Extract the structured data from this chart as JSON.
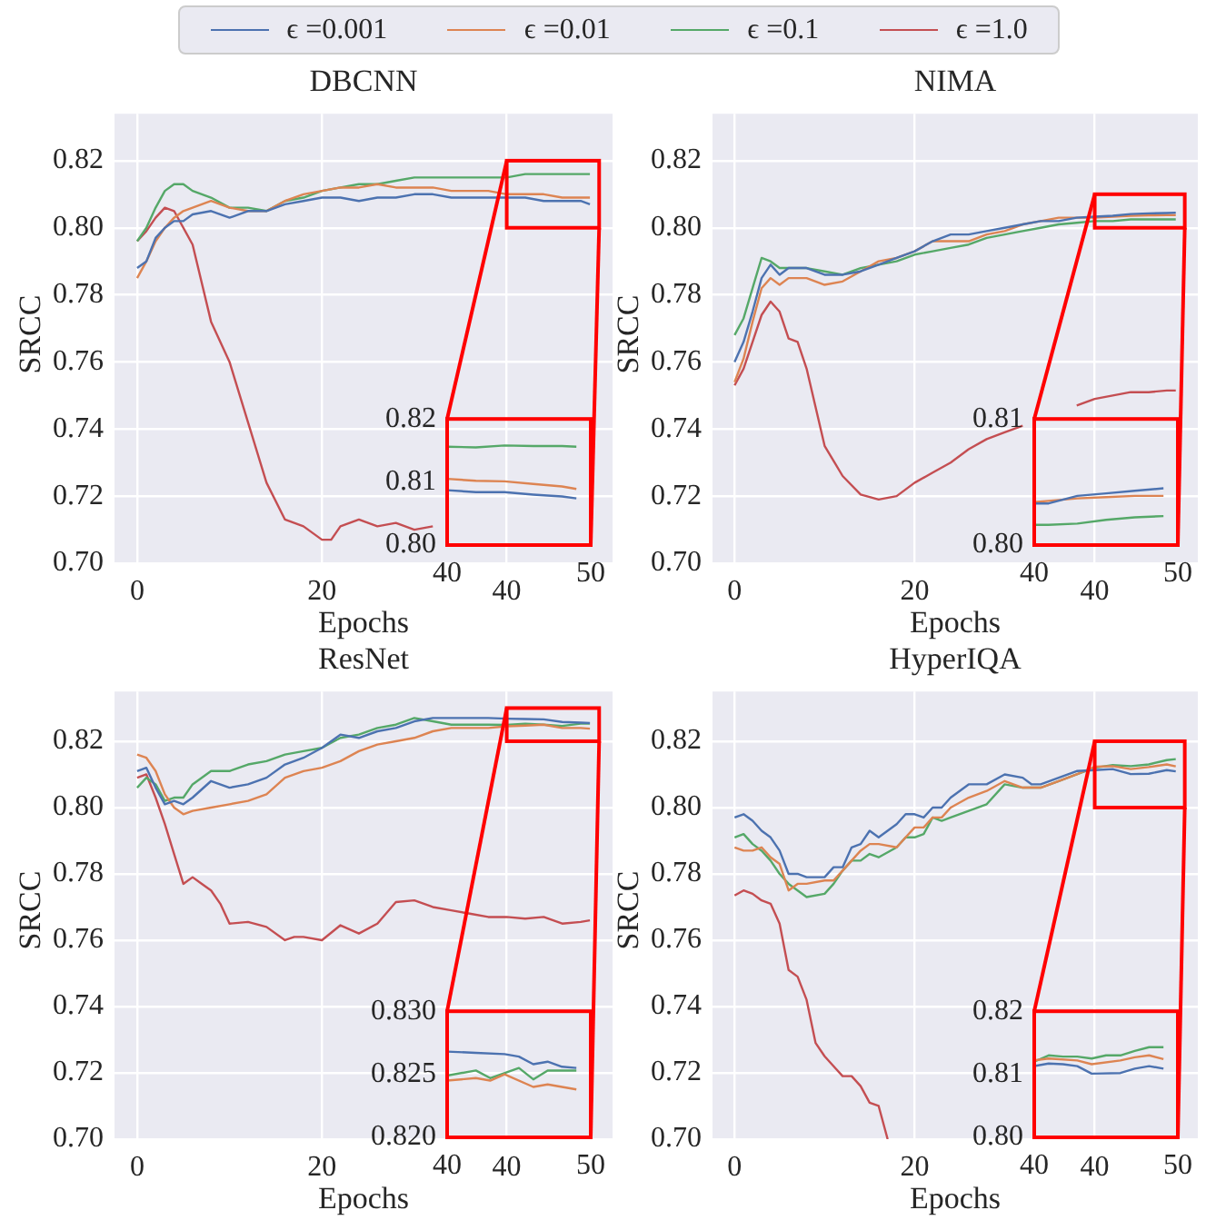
{
  "chart_data": [
    {
      "type": "line",
      "title": "DBCNN",
      "xlabel": "Epochs",
      "ylabel": "SRCC",
      "xlim": [
        -2.45,
        51.45
      ],
      "xticks": [
        0,
        20,
        40
      ],
      "ylim": [
        0.7,
        0.834
      ],
      "yticks": [
        {
          "value": 0.7,
          "label": "0.70"
        },
        {
          "value": 0.72,
          "label": "0.72"
        },
        {
          "value": 0.74,
          "label": "0.74"
        },
        {
          "value": 0.76,
          "label": "0.76"
        },
        {
          "value": 0.78,
          "label": "0.78"
        },
        {
          "value": 0.8,
          "label": "0.80"
        },
        {
          "value": 0.82,
          "label": "0.82"
        }
      ],
      "grid": true,
      "legend": "top",
      "marker": "none",
      "series": [
        {
          "name": "ϵ =0.001",
          "color": "#4c72b0",
          "x": [
            0,
            1,
            2,
            3,
            4,
            5,
            6,
            8,
            10,
            12,
            14,
            16,
            18,
            20,
            22,
            24,
            26,
            28,
            30,
            32,
            34,
            36,
            38,
            40,
            42,
            44,
            46,
            48,
            49
          ],
          "values": [
            0.788,
            0.79,
            0.797,
            0.8,
            0.802,
            0.802,
            0.804,
            0.805,
            0.803,
            0.805,
            0.805,
            0.807,
            0.808,
            0.809,
            0.809,
            0.808,
            0.809,
            0.809,
            0.81,
            0.81,
            0.809,
            0.809,
            0.809,
            0.809,
            0.809,
            0.808,
            0.808,
            0.808,
            0.807
          ]
        },
        {
          "name": "ϵ =0.01",
          "color": "#dd8452",
          "x": [
            0,
            1,
            2,
            3,
            4,
            5,
            6,
            8,
            10,
            12,
            14,
            16,
            18,
            20,
            22,
            24,
            26,
            28,
            30,
            32,
            34,
            36,
            38,
            40,
            42,
            44,
            46,
            48,
            49
          ],
          "values": [
            0.785,
            0.79,
            0.796,
            0.8,
            0.803,
            0.805,
            0.806,
            0.808,
            0.806,
            0.805,
            0.805,
            0.808,
            0.81,
            0.811,
            0.812,
            0.812,
            0.813,
            0.812,
            0.812,
            0.812,
            0.811,
            0.811,
            0.811,
            0.81,
            0.81,
            0.81,
            0.809,
            0.809,
            0.809
          ]
        },
        {
          "name": "ϵ =0.1",
          "color": "#55a868",
          "x": [
            0,
            1,
            2,
            3,
            4,
            5,
            6,
            8,
            10,
            12,
            14,
            16,
            18,
            20,
            22,
            24,
            26,
            28,
            30,
            32,
            34,
            36,
            38,
            40,
            42,
            44,
            46,
            48,
            49
          ],
          "values": [
            0.796,
            0.8,
            0.806,
            0.811,
            0.813,
            0.813,
            0.811,
            0.809,
            0.806,
            0.806,
            0.805,
            0.808,
            0.809,
            0.811,
            0.812,
            0.813,
            0.813,
            0.814,
            0.815,
            0.815,
            0.815,
            0.815,
            0.815,
            0.815,
            0.816,
            0.816,
            0.816,
            0.816,
            0.816
          ]
        },
        {
          "name": "ϵ =1.0",
          "color": "#c44e52",
          "x": [
            0,
            1,
            2,
            3,
            4,
            5,
            6,
            8,
            10,
            12,
            14,
            16,
            18,
            20,
            21,
            22,
            24,
            26,
            28,
            30,
            32
          ],
          "values": [
            0.796,
            0.799,
            0.803,
            0.806,
            0.805,
            0.8,
            0.795,
            0.772,
            0.76,
            0.742,
            0.724,
            0.713,
            0.711,
            0.707,
            0.707,
            0.711,
            0.713,
            0.711,
            0.712,
            0.71,
            0.711
          ]
        }
      ]
    },
    {
      "type": "line",
      "xlim": [
        40,
        50
      ],
      "xticks": [
        40,
        50
      ],
      "ylim": [
        0.8,
        0.82
      ],
      "yticks": [
        {
          "value": 0.8,
          "label": "0.80"
        },
        {
          "value": 0.81,
          "label": "0.81"
        },
        {
          "value": 0.82,
          "label": "0.82"
        }
      ],
      "marker": "none",
      "series": [
        {
          "color": "#4c72b0",
          "x": [
            40,
            42,
            44,
            46,
            48,
            49
          ],
          "values": [
            0.8087,
            0.8084,
            0.8084,
            0.808,
            0.8077,
            0.8074
          ]
        },
        {
          "color": "#dd8452",
          "x": [
            40,
            42,
            44,
            46,
            48,
            49
          ],
          "values": [
            0.8105,
            0.8102,
            0.8101,
            0.8097,
            0.8093,
            0.8089
          ]
        },
        {
          "color": "#55a868",
          "x": [
            40,
            42,
            44,
            46,
            48,
            49
          ],
          "values": [
            0.8156,
            0.8155,
            0.8158,
            0.8157,
            0.8157,
            0.8156
          ]
        }
      ]
    },
    {
      "type": "line",
      "title": "NIMA",
      "xlabel": "Epochs",
      "ylabel": "SRCC",
      "xlim": [
        -2.45,
        51.45
      ],
      "xticks": [
        0,
        20,
        40
      ],
      "ylim": [
        0.7,
        0.834
      ],
      "yticks": [
        {
          "value": 0.7,
          "label": "0.70"
        },
        {
          "value": 0.72,
          "label": "0.72"
        },
        {
          "value": 0.74,
          "label": "0.74"
        },
        {
          "value": 0.76,
          "label": "0.76"
        },
        {
          "value": 0.78,
          "label": "0.78"
        },
        {
          "value": 0.8,
          "label": "0.80"
        },
        {
          "value": 0.82,
          "label": "0.82"
        }
      ],
      "grid": true,
      "legend": "top",
      "marker": "none",
      "series": [
        {
          "name": "ϵ =0.001",
          "color": "#4c72b0",
          "x": [
            0,
            1,
            2,
            3,
            4,
            5,
            6,
            8,
            10,
            12,
            14,
            16,
            18,
            20,
            22,
            24,
            26,
            28,
            30,
            32,
            34,
            36,
            38,
            40,
            42,
            44,
            46,
            48,
            49
          ],
          "values": [
            0.76,
            0.766,
            0.775,
            0.785,
            0.789,
            0.786,
            0.788,
            0.788,
            0.786,
            0.786,
            0.787,
            0.789,
            0.791,
            0.793,
            0.796,
            0.798,
            0.798,
            0.799,
            0.8,
            0.801,
            0.802,
            0.802,
            0.803,
            0.8033,
            0.8036,
            0.8041,
            0.8043,
            0.8044,
            0.8045
          ]
        },
        {
          "name": "ϵ =0.01",
          "color": "#dd8452",
          "x": [
            0,
            1,
            2,
            3,
            4,
            5,
            6,
            8,
            10,
            12,
            14,
            16,
            18,
            20,
            22,
            24,
            26,
            28,
            30,
            32,
            34,
            36,
            38,
            40,
            42,
            44,
            46,
            48,
            49
          ],
          "values": [
            0.754,
            0.761,
            0.772,
            0.782,
            0.785,
            0.783,
            0.785,
            0.785,
            0.783,
            0.784,
            0.787,
            0.79,
            0.791,
            0.793,
            0.796,
            0.796,
            0.796,
            0.798,
            0.799,
            0.801,
            0.802,
            0.803,
            0.803,
            0.803,
            0.8033,
            0.8036,
            0.8037,
            0.8038,
            0.8038
          ]
        },
        {
          "name": "ϵ =0.1",
          "color": "#55a868",
          "x": [
            0,
            1,
            2,
            3,
            4,
            5,
            6,
            8,
            10,
            12,
            14,
            16,
            18,
            20,
            22,
            24,
            26,
            28,
            30,
            32,
            34,
            36,
            38,
            40,
            42,
            44,
            46,
            48,
            49
          ],
          "values": [
            0.768,
            0.773,
            0.782,
            0.791,
            0.79,
            0.788,
            0.788,
            0.788,
            0.787,
            0.786,
            0.788,
            0.789,
            0.79,
            0.792,
            0.793,
            0.794,
            0.795,
            0.797,
            0.798,
            0.799,
            0.8,
            0.801,
            0.8015,
            0.802,
            0.802,
            0.8025,
            0.8025,
            0.8025,
            0.8025
          ]
        },
        {
          "name": "ϵ =1.0",
          "color": "#c44e52",
          "x": [
            0,
            1,
            2,
            3,
            4,
            5,
            6,
            7,
            8,
            10,
            12,
            14,
            16,
            18,
            20,
            22,
            24,
            26,
            28,
            30,
            32,
            34,
            36,
            38,
            40,
            42,
            44,
            46,
            48,
            49
          ],
          "values": [
            0.753,
            0.758,
            0.766,
            0.774,
            0.778,
            0.775,
            0.767,
            0.766,
            0.758,
            0.735,
            0.726,
            0.7205,
            0.719,
            0.72,
            0.724,
            0.727,
            0.73,
            0.734,
            0.737,
            0.739,
            0.741,
            null,
            null,
            0.747,
            0.749,
            0.75,
            0.751,
            0.751,
            0.7515,
            0.7515
          ]
        }
      ]
    },
    {
      "type": "line",
      "xlim": [
        40,
        50
      ],
      "xticks": [
        40,
        50
      ],
      "ylim": [
        0.8,
        0.81
      ],
      "yticks": [
        {
          "value": 0.8,
          "label": "0.80"
        },
        {
          "value": 0.81,
          "label": "0.81"
        }
      ],
      "marker": "none",
      "series": [
        {
          "color": "#4c72b0",
          "x": [
            40,
            41,
            43,
            45,
            47,
            49
          ],
          "values": [
            0.8033,
            0.8033,
            0.8039,
            0.8041,
            0.8043,
            0.8045
          ]
        },
        {
          "color": "#dd8452",
          "x": [
            40,
            41,
            43,
            45,
            47,
            49
          ],
          "values": [
            0.8034,
            0.8035,
            0.8037,
            0.8038,
            0.8039,
            0.8039
          ]
        },
        {
          "color": "#55a868",
          "x": [
            40,
            41,
            43,
            45,
            47,
            49
          ],
          "values": [
            0.8016,
            0.8016,
            0.8017,
            0.802,
            0.8022,
            0.8023
          ]
        }
      ]
    },
    {
      "type": "line",
      "title": "ResNet",
      "xlabel": "Epochs",
      "ylabel": "SRCC",
      "xlim": [
        -2.45,
        51.45
      ],
      "xticks": [
        0,
        20,
        40
      ],
      "ylim": [
        0.7,
        0.835
      ],
      "yticks": [
        {
          "value": 0.7,
          "label": "0.70"
        },
        {
          "value": 0.72,
          "label": "0.72"
        },
        {
          "value": 0.74,
          "label": "0.74"
        },
        {
          "value": 0.76,
          "label": "0.76"
        },
        {
          "value": 0.78,
          "label": "0.78"
        },
        {
          "value": 0.8,
          "label": "0.80"
        },
        {
          "value": 0.82,
          "label": "0.82"
        }
      ],
      "grid": true,
      "legend": "top",
      "marker": "none",
      "series": [
        {
          "name": "ϵ =0.001",
          "color": "#4c72b0",
          "x": [
            0,
            1,
            2,
            3,
            4,
            5,
            6,
            8,
            10,
            12,
            14,
            16,
            18,
            20,
            22,
            24,
            26,
            28,
            30,
            32,
            34,
            36,
            38,
            40,
            42,
            44,
            46,
            48,
            49
          ],
          "values": [
            0.811,
            0.812,
            0.806,
            0.801,
            0.802,
            0.801,
            0.803,
            0.808,
            0.806,
            0.807,
            0.809,
            0.813,
            0.815,
            0.818,
            0.822,
            0.821,
            0.823,
            0.824,
            0.826,
            0.827,
            0.827,
            0.827,
            0.827,
            0.8268,
            0.8267,
            0.8266,
            0.8258,
            0.8256,
            0.8255
          ]
        },
        {
          "name": "ϵ =0.01",
          "color": "#dd8452",
          "x": [
            0,
            1,
            2,
            3,
            4,
            5,
            6,
            8,
            10,
            12,
            14,
            16,
            18,
            20,
            22,
            24,
            26,
            28,
            30,
            32,
            34,
            36,
            38,
            40,
            42,
            44,
            46,
            48,
            49
          ],
          "values": [
            0.816,
            0.815,
            0.811,
            0.804,
            0.8,
            0.798,
            0.799,
            0.8,
            0.801,
            0.802,
            0.804,
            0.809,
            0.811,
            0.812,
            0.814,
            0.817,
            0.819,
            0.82,
            0.821,
            0.823,
            0.824,
            0.824,
            0.824,
            0.8245,
            0.8247,
            0.825,
            0.824,
            0.824,
            0.8238
          ]
        },
        {
          "name": "ϵ =0.1",
          "color": "#55a868",
          "x": [
            0,
            1,
            2,
            3,
            4,
            5,
            6,
            8,
            10,
            12,
            14,
            16,
            18,
            20,
            22,
            24,
            26,
            28,
            30,
            32,
            34,
            36,
            38,
            40,
            42,
            44,
            46,
            48,
            49
          ],
          "values": [
            0.806,
            0.809,
            0.807,
            0.802,
            0.803,
            0.803,
            0.807,
            0.811,
            0.811,
            0.813,
            0.814,
            0.816,
            0.817,
            0.818,
            0.821,
            0.822,
            0.824,
            0.825,
            0.827,
            0.826,
            0.825,
            0.825,
            0.825,
            0.8249,
            0.8253,
            0.825,
            0.8246,
            0.8253,
            0.8253
          ]
        },
        {
          "name": "ϵ =1.0",
          "color": "#c44e52",
          "x": [
            0,
            1,
            2,
            3,
            4,
            5,
            6,
            7,
            8,
            9,
            10,
            12,
            14,
            16,
            17,
            18,
            20,
            22,
            24,
            26,
            28,
            30,
            32,
            34,
            36,
            38,
            40,
            42,
            44,
            46,
            48,
            49
          ],
          "values": [
            0.809,
            0.81,
            0.803,
            0.795,
            0.786,
            0.777,
            0.779,
            0.777,
            0.775,
            0.771,
            0.765,
            0.7655,
            0.764,
            0.76,
            0.761,
            0.761,
            0.76,
            0.7645,
            0.762,
            0.765,
            0.7715,
            0.772,
            0.77,
            0.769,
            0.768,
            0.767,
            0.767,
            0.7665,
            0.767,
            0.765,
            0.7655,
            0.766
          ]
        }
      ]
    },
    {
      "type": "line",
      "xlim": [
        40,
        50
      ],
      "xticks": [
        40,
        50
      ],
      "ylim": [
        0.82,
        0.83
      ],
      "yticks": [
        {
          "value": 0.82,
          "label": "0.820"
        },
        {
          "value": 0.825,
          "label": "0.825"
        },
        {
          "value": 0.83,
          "label": "0.830"
        }
      ],
      "marker": "none",
      "series": [
        {
          "color": "#4c72b0",
          "x": [
            40,
            42,
            44,
            45,
            46,
            47,
            48,
            49
          ],
          "values": [
            0.8268,
            0.8267,
            0.8266,
            0.8264,
            0.8258,
            0.826,
            0.8256,
            0.8255
          ]
        },
        {
          "color": "#dd8452",
          "x": [
            40,
            42,
            43,
            44,
            46,
            47,
            49
          ],
          "values": [
            0.8245,
            0.8247,
            0.8245,
            0.825,
            0.824,
            0.8242,
            0.8238
          ]
        },
        {
          "color": "#55a868",
          "x": [
            40,
            42,
            43,
            45,
            46,
            47,
            49
          ],
          "values": [
            0.8249,
            0.8253,
            0.8247,
            0.8255,
            0.8246,
            0.8253,
            0.8253
          ]
        }
      ]
    },
    {
      "type": "line",
      "title": "HyperIQA",
      "xlabel": "Epochs",
      "ylabel": "SRCC",
      "xlim": [
        -2.45,
        51.45
      ],
      "xticks": [
        0,
        20,
        40
      ],
      "ylim": [
        0.7,
        0.835
      ],
      "yticks": [
        {
          "value": 0.7,
          "label": "0.70"
        },
        {
          "value": 0.72,
          "label": "0.72"
        },
        {
          "value": 0.74,
          "label": "0.74"
        },
        {
          "value": 0.76,
          "label": "0.76"
        },
        {
          "value": 0.78,
          "label": "0.78"
        },
        {
          "value": 0.8,
          "label": "0.80"
        },
        {
          "value": 0.82,
          "label": "0.82"
        }
      ],
      "grid": true,
      "legend": "top",
      "marker": "none",
      "series": [
        {
          "name": "ϵ =0.001",
          "color": "#4c72b0",
          "x": [
            0,
            1,
            2,
            3,
            4,
            5,
            6,
            7,
            8,
            10,
            11,
            12,
            13,
            14,
            15,
            16,
            18,
            19,
            20,
            21,
            22,
            23,
            24,
            26,
            28,
            30,
            32,
            33,
            34,
            36,
            38,
            40,
            42,
            44,
            46,
            48,
            49
          ],
          "values": [
            0.797,
            0.798,
            0.796,
            0.793,
            0.791,
            0.787,
            0.78,
            0.78,
            0.779,
            0.779,
            0.782,
            0.782,
            0.788,
            0.789,
            0.793,
            0.791,
            0.795,
            0.798,
            0.798,
            0.797,
            0.8,
            0.8,
            0.803,
            0.807,
            0.807,
            0.81,
            0.809,
            0.807,
            0.807,
            0.809,
            0.811,
            0.8113,
            0.8116,
            0.8101,
            0.8102,
            0.8113,
            0.8109
          ]
        },
        {
          "name": "ϵ =0.01",
          "color": "#dd8452",
          "x": [
            0,
            1,
            2,
            3,
            4,
            5,
            6,
            7,
            8,
            10,
            11,
            12,
            13,
            14,
            15,
            16,
            18,
            19,
            20,
            21,
            22,
            23,
            24,
            26,
            28,
            30,
            32,
            33,
            34,
            36,
            38,
            40,
            42,
            44,
            46,
            48,
            49
          ],
          "values": [
            0.788,
            0.787,
            0.787,
            0.788,
            0.785,
            0.783,
            0.775,
            0.777,
            0.777,
            0.778,
            0.778,
            0.781,
            0.784,
            0.787,
            0.789,
            0.789,
            0.788,
            0.791,
            0.794,
            0.794,
            0.797,
            0.797,
            0.8,
            0.803,
            0.805,
            0.808,
            0.806,
            0.806,
            0.806,
            0.808,
            0.81,
            0.8123,
            0.8125,
            0.8116,
            0.8122,
            0.813,
            0.8124
          ]
        },
        {
          "name": "ϵ =0.1",
          "color": "#55a868",
          "x": [
            0,
            1,
            2,
            3,
            4,
            5,
            6,
            7,
            8,
            10,
            11,
            12,
            13,
            14,
            15,
            16,
            18,
            19,
            20,
            21,
            22,
            23,
            24,
            26,
            28,
            30,
            32,
            33,
            34,
            36,
            38,
            40,
            42,
            44,
            46,
            48,
            49
          ],
          "values": [
            0.791,
            0.792,
            0.789,
            0.787,
            0.784,
            0.78,
            0.777,
            0.775,
            0.773,
            0.774,
            0.777,
            0.781,
            0.784,
            0.784,
            0.786,
            0.785,
            0.788,
            0.791,
            0.791,
            0.792,
            0.797,
            0.796,
            0.797,
            0.799,
            0.801,
            0.807,
            0.806,
            0.806,
            0.806,
            0.808,
            0.81,
            0.812,
            0.8128,
            0.8125,
            0.813,
            0.8143,
            0.8146
          ]
        },
        {
          "name": "ϵ =1.0",
          "color": "#c44e52",
          "x": [
            0,
            1,
            2,
            3,
            4,
            5,
            6,
            7,
            8,
            9,
            10,
            11,
            12,
            13,
            14,
            15,
            16,
            17
          ],
          "values": [
            0.7735,
            0.775,
            0.774,
            0.772,
            0.771,
            0.765,
            0.751,
            0.749,
            0.742,
            0.729,
            0.725,
            0.722,
            0.719,
            0.719,
            0.716,
            0.711,
            0.71,
            0.7
          ]
        }
      ]
    },
    {
      "type": "line",
      "xlim": [
        40,
        50
      ],
      "xticks": [
        40,
        50
      ],
      "ylim": [
        0.8,
        0.82
      ],
      "yticks": [
        {
          "value": 0.8,
          "label": "0.80"
        },
        {
          "value": 0.81,
          "label": "0.81"
        },
        {
          "value": 0.82,
          "label": "0.82"
        }
      ],
      "marker": "none",
      "series": [
        {
          "color": "#4c72b0",
          "x": [
            40,
            41,
            42,
            43,
            44,
            46,
            47,
            48,
            49
          ],
          "values": [
            0.8113,
            0.8117,
            0.8116,
            0.8113,
            0.8101,
            0.8102,
            0.8109,
            0.8113,
            0.8109
          ]
        },
        {
          "color": "#dd8452",
          "x": [
            40,
            41,
            43,
            44,
            46,
            47,
            48,
            49
          ],
          "values": [
            0.8122,
            0.8125,
            0.8122,
            0.8116,
            0.8122,
            0.8127,
            0.813,
            0.8124
          ]
        },
        {
          "color": "#55a868",
          "x": [
            40,
            41,
            42,
            43,
            44,
            45,
            46,
            47,
            48,
            49
          ],
          "values": [
            0.812,
            0.813,
            0.8128,
            0.8128,
            0.8125,
            0.813,
            0.813,
            0.8137,
            0.8143,
            0.8143
          ]
        }
      ]
    }
  ]
}
